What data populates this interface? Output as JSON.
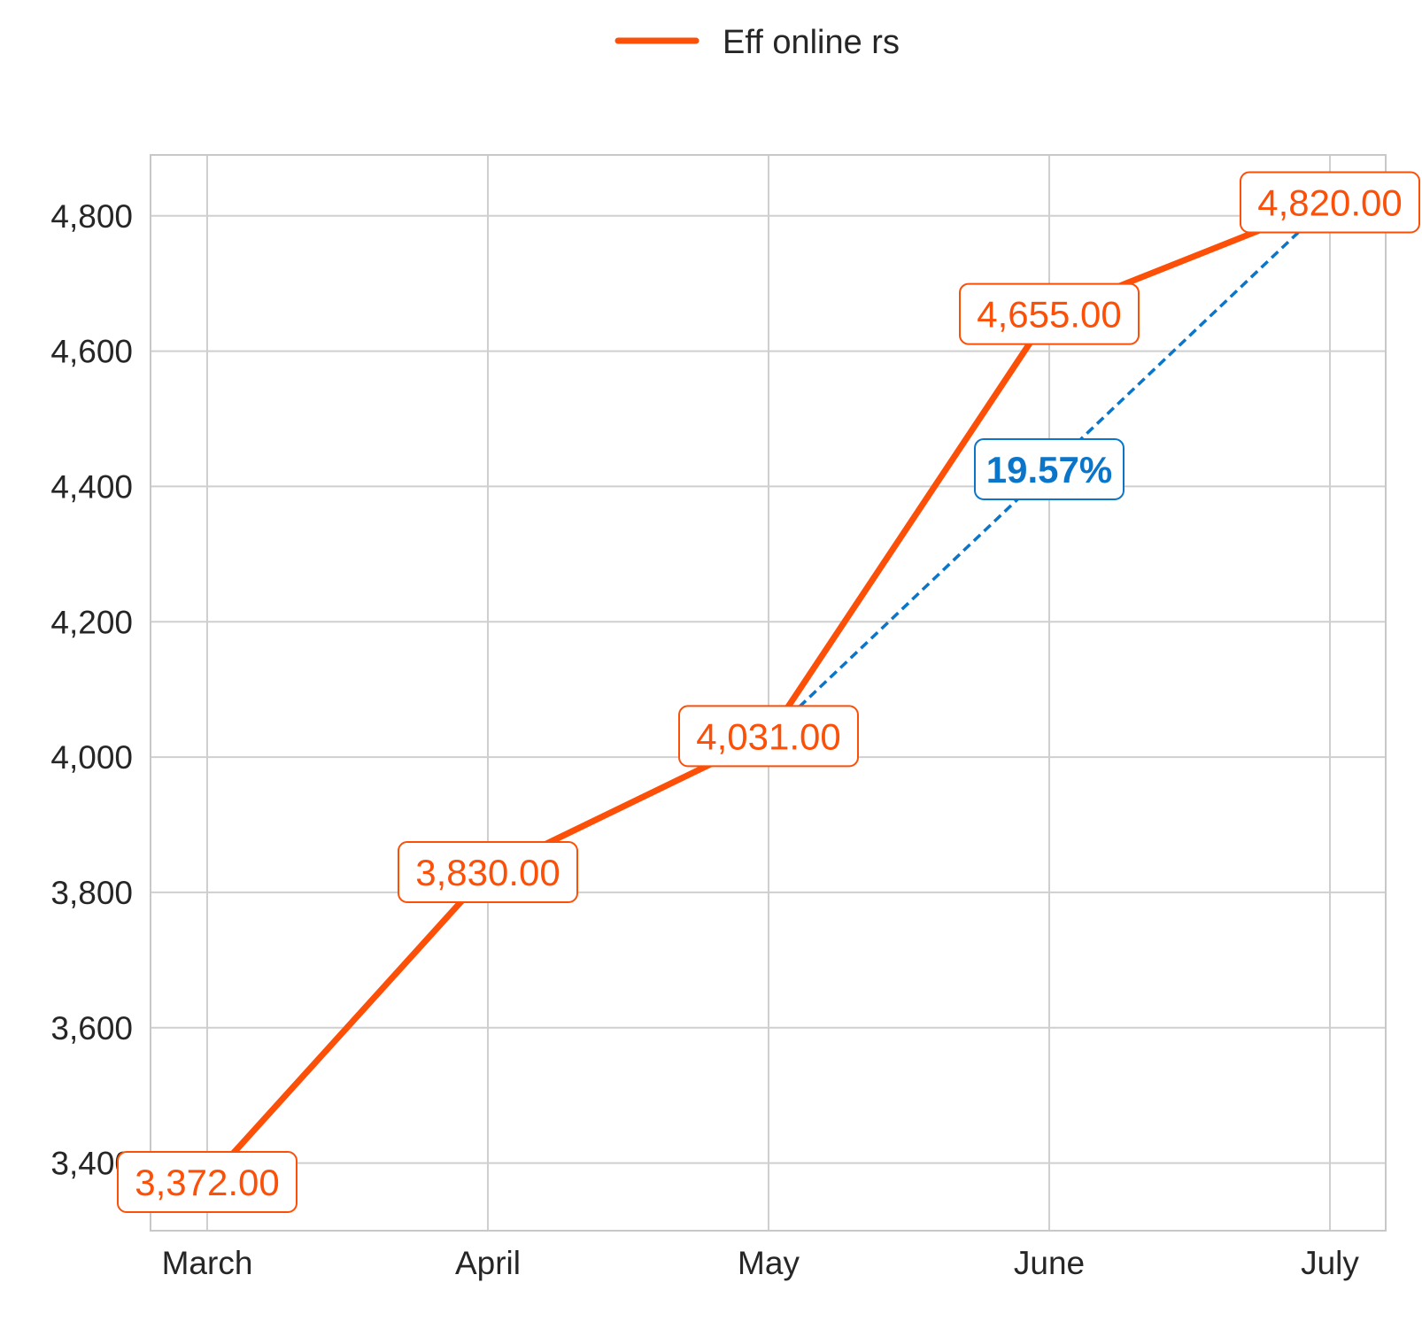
{
  "chart_data": {
    "type": "line",
    "categories": [
      "March",
      "April",
      "May",
      "June",
      "July"
    ],
    "series": [
      {
        "name": "Eff online rs",
        "values": [
          3372,
          3830,
          4031,
          4655,
          4820
        ],
        "color": "#fc4f08"
      }
    ],
    "data_labels": [
      "3,372.00",
      "3,830.00",
      "4,031.00",
      "4,655.00",
      "4,820.00"
    ],
    "yticks": [
      3400,
      3600,
      3800,
      4000,
      4200,
      4400,
      4600,
      4800
    ],
    "ytick_labels": [
      "3,400",
      "3,600",
      "3,800",
      "4,000",
      "4,200",
      "4,400",
      "4,600",
      "4,800"
    ],
    "ylim": [
      3300,
      4890
    ],
    "grid": true,
    "legend_position": "top-center",
    "change_annotation": {
      "from_category": "May",
      "to_category": "July",
      "label": "19.57%",
      "color": "#0b76c9"
    }
  }
}
